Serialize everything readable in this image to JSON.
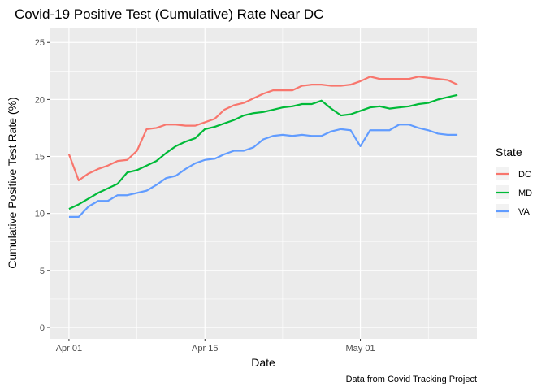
{
  "chart_data": {
    "type": "line",
    "title": "Covid-19 Positive Test (Cumulative) Rate Near DC",
    "xlabel": "Date",
    "ylabel": "Cumulative Positive Test Rate (%)",
    "caption": "Data from Covid Tracking Project",
    "legend_title": "State",
    "legend_position": "right",
    "grid": true,
    "x": [
      "2020-04-01",
      "2020-04-02",
      "2020-04-03",
      "2020-04-04",
      "2020-04-05",
      "2020-04-06",
      "2020-04-07",
      "2020-04-08",
      "2020-04-09",
      "2020-04-10",
      "2020-04-11",
      "2020-04-12",
      "2020-04-13",
      "2020-04-14",
      "2020-04-15",
      "2020-04-16",
      "2020-04-17",
      "2020-04-18",
      "2020-04-19",
      "2020-04-20",
      "2020-04-21",
      "2020-04-22",
      "2020-04-23",
      "2020-04-24",
      "2020-04-25",
      "2020-04-26",
      "2020-04-27",
      "2020-04-28",
      "2020-04-29",
      "2020-04-30",
      "2020-05-01",
      "2020-05-02",
      "2020-05-03",
      "2020-05-04",
      "2020-05-05",
      "2020-05-06",
      "2020-05-07",
      "2020-05-08",
      "2020-05-09",
      "2020-05-10",
      "2020-05-11"
    ],
    "xlim": [
      "2020-03-30",
      "2020-05-13"
    ],
    "xticks": [
      {
        "value": "2020-04-01",
        "label": "Apr 01"
      },
      {
        "value": "2020-04-15",
        "label": "Apr 15"
      },
      {
        "value": "2020-05-01",
        "label": "May 01"
      }
    ],
    "ylim": [
      -1.0,
      26.3
    ],
    "yticks": [
      0,
      5,
      10,
      15,
      20,
      25
    ],
    "series": [
      {
        "name": "DC",
        "color": "#F8766D",
        "values": [
          15.2,
          12.9,
          13.5,
          13.9,
          14.2,
          14.6,
          14.7,
          15.5,
          17.4,
          17.5,
          17.8,
          17.8,
          17.7,
          17.7,
          18.0,
          18.3,
          19.1,
          19.5,
          19.7,
          20.1,
          20.5,
          20.8,
          20.8,
          20.8,
          21.2,
          21.3,
          21.3,
          21.2,
          21.2,
          21.3,
          21.6,
          22.0,
          21.8,
          21.8,
          21.8,
          21.8,
          22.0,
          21.9,
          21.8,
          21.7,
          21.3
        ]
      },
      {
        "name": "MD",
        "color": "#00BA38",
        "values": [
          10.4,
          10.8,
          11.3,
          11.8,
          12.2,
          12.6,
          13.6,
          13.8,
          14.2,
          14.6,
          15.3,
          15.9,
          16.3,
          16.6,
          17.4,
          17.6,
          17.9,
          18.2,
          18.6,
          18.8,
          18.9,
          19.1,
          19.3,
          19.4,
          19.6,
          19.6,
          19.9,
          19.2,
          18.6,
          18.7,
          19.0,
          19.3,
          19.4,
          19.2,
          19.3,
          19.4,
          19.6,
          19.7,
          20.0,
          20.2,
          20.4
        ]
      },
      {
        "name": "VA",
        "color": "#619CFF",
        "values": [
          9.7,
          9.7,
          10.6,
          11.1,
          11.1,
          11.6,
          11.6,
          11.8,
          12.0,
          12.5,
          13.1,
          13.3,
          13.9,
          14.4,
          14.7,
          14.8,
          15.2,
          15.5,
          15.5,
          15.8,
          16.5,
          16.8,
          16.9,
          16.8,
          16.9,
          16.8,
          16.8,
          17.2,
          17.4,
          17.3,
          15.9,
          17.3,
          17.3,
          17.3,
          17.8,
          17.8,
          17.5,
          17.3,
          17.0,
          16.9,
          16.9
        ]
      }
    ]
  }
}
